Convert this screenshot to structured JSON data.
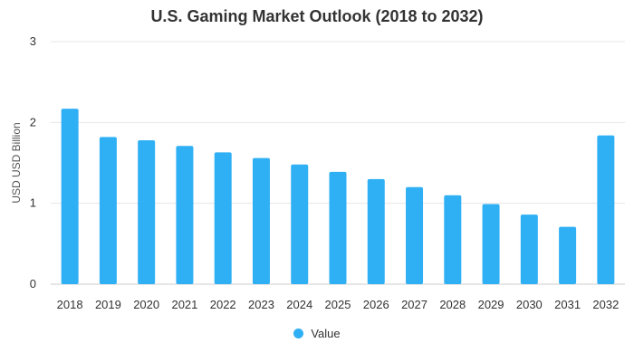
{
  "chart_data": {
    "type": "bar",
    "title": "U.S. Gaming Market Outlook (2018 to 2032)",
    "xlabel": "",
    "ylabel": "USD USD Billion",
    "ylim": [
      0,
      3
    ],
    "yticks": [
      "0",
      "1",
      "2",
      "3"
    ],
    "grid": true,
    "legend_position": "bottom",
    "categories": [
      "2018",
      "2019",
      "2020",
      "2021",
      "2022",
      "2023",
      "2024",
      "2025",
      "2026",
      "2027",
      "2028",
      "2029",
      "2030",
      "2031",
      "2032"
    ],
    "series": [
      {
        "name": "Value",
        "color": "#2fb0f5",
        "values": [
          2.17,
          1.82,
          1.78,
          1.71,
          1.63,
          1.56,
          1.48,
          1.39,
          1.3,
          1.2,
          1.1,
          0.99,
          0.86,
          0.71,
          1.84
        ]
      }
    ]
  }
}
